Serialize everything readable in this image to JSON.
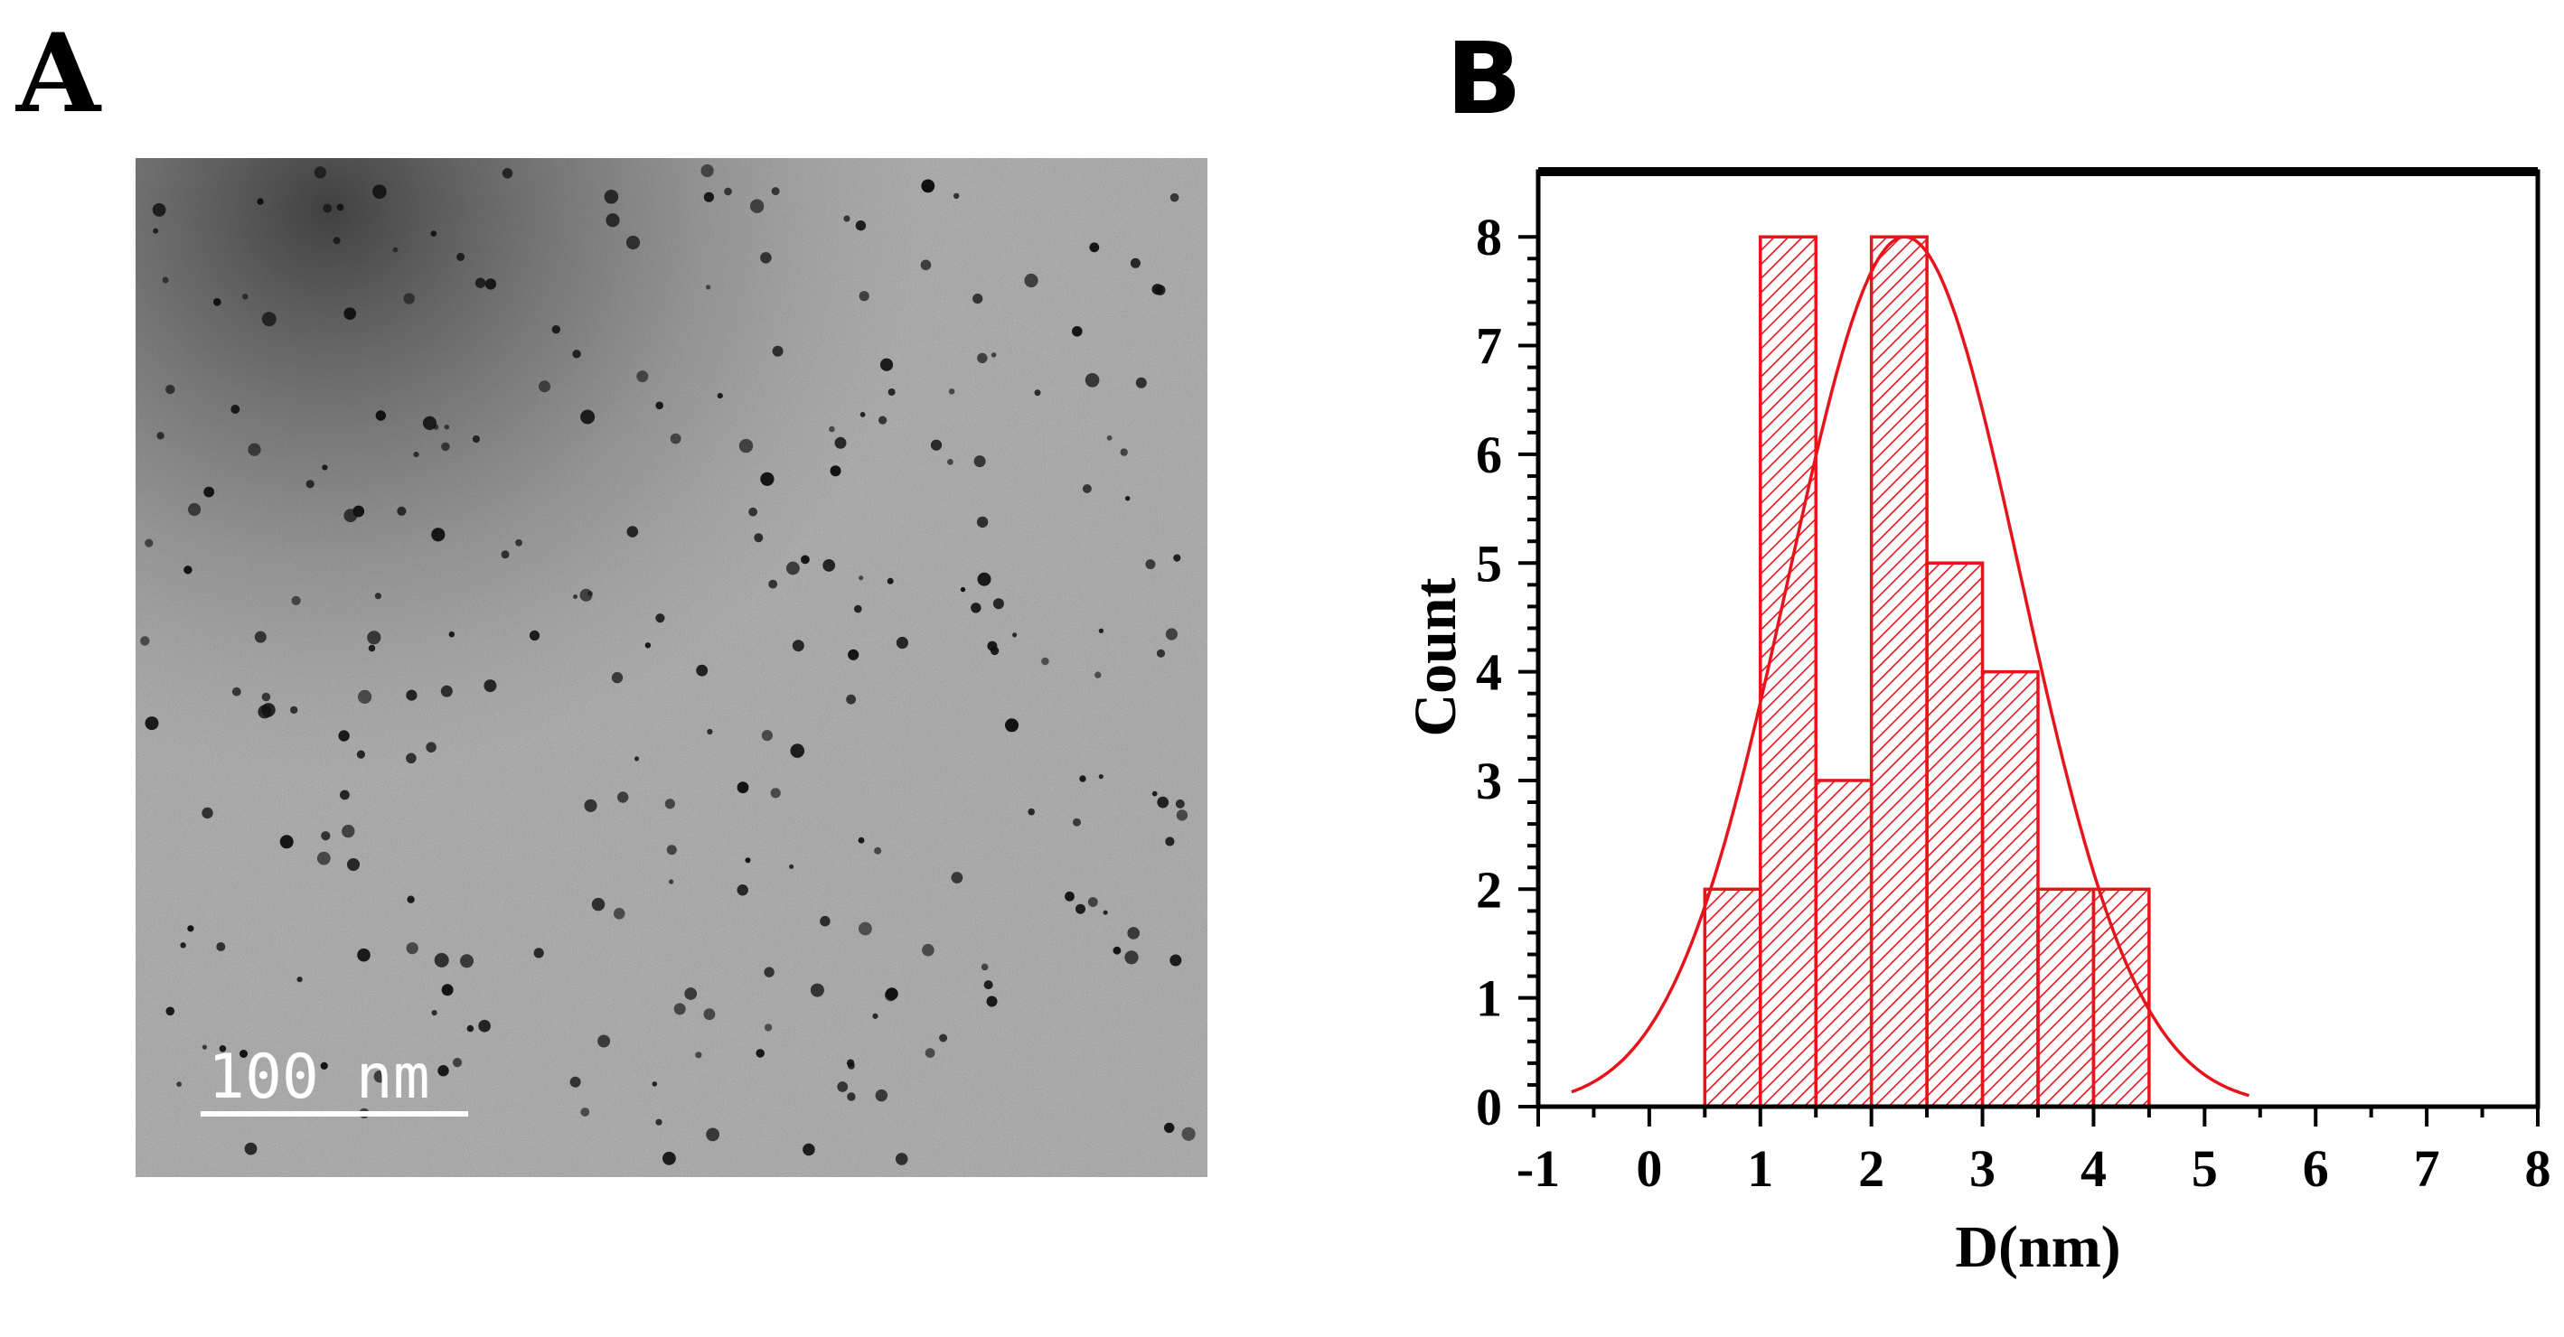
{
  "panels": {
    "a": {
      "letter": "A",
      "scale_bar_label": "100 nm"
    },
    "b": {
      "letter": "B"
    }
  },
  "chart_data": {
    "type": "bar",
    "subtype": "histogram",
    "title": "",
    "xlabel": "D(nm)",
    "ylabel": "Count",
    "xlim": [
      -1,
      8
    ],
    "ylim": [
      0,
      8.6
    ],
    "x_ticks": [
      -1,
      0,
      1,
      2,
      3,
      4,
      5,
      6,
      7,
      8
    ],
    "y_ticks": [
      0,
      1,
      2,
      3,
      4,
      5,
      6,
      7,
      8
    ],
    "bin_edges": [
      0.5,
      1.0,
      1.5,
      2.0,
      2.5,
      3.0,
      3.5,
      4.0,
      4.5
    ],
    "counts": [
      2,
      8,
      3,
      8,
      5,
      4,
      2,
      2
    ],
    "fit_curve": {
      "type": "gaussian",
      "center": 2.3,
      "amplitude": 8.0,
      "sigma": 1.05
    },
    "grid": false,
    "legend": "none",
    "colors": {
      "bars": "#e8141c",
      "fit": "#e8141c",
      "axis": "#000000"
    }
  }
}
